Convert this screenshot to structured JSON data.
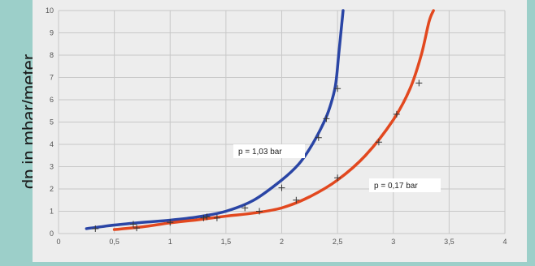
{
  "chart_data": {
    "type": "line",
    "title": "",
    "xlabel": "",
    "ylabel": "dp in mbar/meter",
    "xlim": [
      0,
      4
    ],
    "ylim": [
      0,
      10
    ],
    "x_ticks": [
      "0",
      "0,5",
      "1",
      "1,5",
      "2",
      "2,5",
      "3",
      "3,5",
      "4"
    ],
    "y_ticks": [
      "0",
      "1",
      "2",
      "3",
      "4",
      "5",
      "6",
      "7",
      "8",
      "9",
      "10"
    ],
    "grid": true,
    "colors": {
      "series_blue": "#2a45a5",
      "series_red": "#e2481f",
      "grid": "#c8c8c8",
      "marker": "#333333"
    },
    "series": [
      {
        "name": "",
        "annotation": "p = 1,03 bar",
        "color": "#2a45a5",
        "curve": [
          [
            0.25,
            0.22
          ],
          [
            0.5,
            0.38
          ],
          [
            0.75,
            0.5
          ],
          [
            1.0,
            0.6
          ],
          [
            1.25,
            0.75
          ],
          [
            1.5,
            1.0
          ],
          [
            1.75,
            1.5
          ],
          [
            2.0,
            2.4
          ],
          [
            2.15,
            3.1
          ],
          [
            2.25,
            3.8
          ],
          [
            2.35,
            4.7
          ],
          [
            2.42,
            5.5
          ],
          [
            2.48,
            6.6
          ],
          [
            2.51,
            8.0
          ],
          [
            2.53,
            9.0
          ],
          [
            2.55,
            10.0
          ]
        ],
        "points": [
          [
            0.33,
            0.22
          ],
          [
            0.67,
            0.42
          ],
          [
            1.0,
            0.5
          ],
          [
            1.33,
            0.75
          ],
          [
            1.67,
            1.15
          ],
          [
            2.0,
            2.05
          ],
          [
            2.33,
            4.3
          ],
          [
            2.4,
            5.15
          ],
          [
            2.5,
            6.5
          ]
        ]
      },
      {
        "name": "",
        "annotation": "p = 0,17 bar",
        "color": "#e2481f",
        "curve": [
          [
            0.5,
            0.18
          ],
          [
            0.75,
            0.3
          ],
          [
            1.0,
            0.48
          ],
          [
            1.25,
            0.62
          ],
          [
            1.5,
            0.78
          ],
          [
            1.75,
            0.92
          ],
          [
            2.0,
            1.15
          ],
          [
            2.25,
            1.65
          ],
          [
            2.5,
            2.4
          ],
          [
            2.75,
            3.5
          ],
          [
            3.0,
            5.1
          ],
          [
            3.15,
            6.5
          ],
          [
            3.25,
            8.0
          ],
          [
            3.32,
            9.5
          ],
          [
            3.36,
            10.0
          ]
        ],
        "points": [
          [
            0.7,
            0.25
          ],
          [
            1.3,
            0.7
          ],
          [
            1.42,
            0.7
          ],
          [
            1.8,
            1.0
          ],
          [
            2.13,
            1.5
          ],
          [
            2.5,
            2.5
          ],
          [
            2.87,
            4.1
          ],
          [
            3.03,
            5.35
          ],
          [
            3.23,
            6.75
          ]
        ]
      }
    ]
  }
}
